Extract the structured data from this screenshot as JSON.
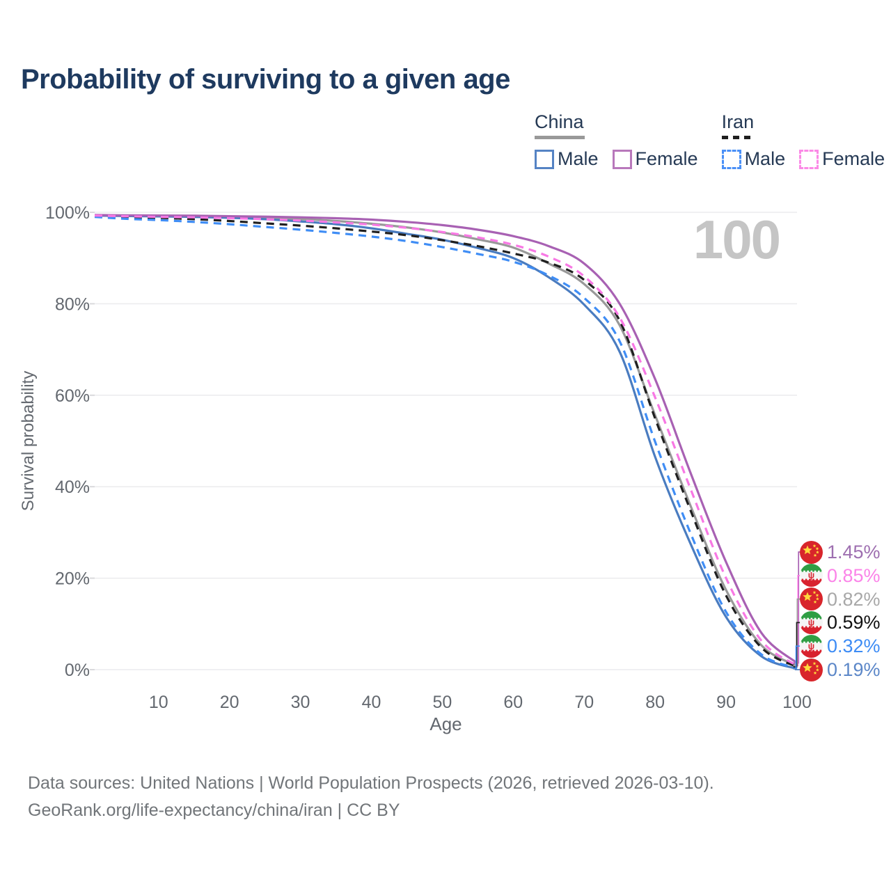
{
  "title": "Probability of surviving to a given age",
  "watermark": "100",
  "legend": {
    "china": {
      "label": "China",
      "male": "Male",
      "female": "Female"
    },
    "iran": {
      "label": "Iran",
      "male": "Male",
      "female": "Female"
    }
  },
  "footer": {
    "line1": "Data sources: United Nations | World Population Prospects (2026, retrieved 2026-03-10).",
    "line2": "GeoRank.org/life-expectancy/china/iran | CC BY"
  },
  "colors": {
    "title_text": "#1e3a5f",
    "legend_text": "#263a55",
    "axis_text": "#63686f",
    "grid_line": "#ebebed",
    "tick_stub": "#d9d9dc",
    "watermark": "#c5c5c5",
    "footer_text": "#717579",
    "china_flag_red": "#d8252b",
    "china_flag_yellow": "#ffd83d",
    "iran_flag_green": "#2f9e44",
    "iran_flag_white": "#f5f5f5",
    "iran_flag_red": "#d8222e"
  },
  "chart_data": {
    "type": "line",
    "title": "Probability of surviving to a given age",
    "xlabel": "Age",
    "ylabel": "Survival probability",
    "xlim": [
      1,
      100
    ],
    "ylim": [
      0,
      100
    ],
    "grid": "horizontal",
    "legend_position": "top-right",
    "xticks": [
      10,
      20,
      30,
      40,
      50,
      60,
      70,
      80,
      90,
      100
    ],
    "yticks": [
      {
        "value": 0,
        "label": "0%"
      },
      {
        "value": 20,
        "label": "20%"
      },
      {
        "value": 40,
        "label": "40%"
      },
      {
        "value": 60,
        "label": "60%"
      },
      {
        "value": 80,
        "label": "80%"
      },
      {
        "value": 100,
        "label": "100%"
      }
    ],
    "x": [
      1,
      5,
      10,
      15,
      20,
      25,
      30,
      35,
      40,
      45,
      50,
      55,
      60,
      65,
      70,
      75,
      80,
      85,
      90,
      95,
      100
    ],
    "series": [
      {
        "name": "China (both sexes)",
        "country": "China",
        "sex": "both",
        "flag": "china",
        "color": "#999999",
        "dashed": false,
        "end_label": "0.82%",
        "end_label_color": "#a8a8a8",
        "values": [
          99.3,
          99.25,
          99.2,
          99.1,
          98.95,
          98.75,
          98.5,
          98.1,
          97.5,
          96.7,
          95.6,
          94.1,
          92.3,
          88.8,
          84.3,
          75.3,
          55.6,
          35.8,
          17.4,
          5.3,
          0.82
        ]
      },
      {
        "name": "China Male",
        "country": "China",
        "sex": "male",
        "flag": "china",
        "color": "#4a7cc0",
        "dashed": false,
        "end_label": "0.19%",
        "end_label_color": "#5c87c8",
        "values": [
          99.3,
          99.2,
          99.1,
          99.0,
          98.8,
          98.5,
          98.0,
          97.4,
          96.5,
          95.3,
          94.0,
          92.2,
          90.0,
          85.8,
          79.8,
          69.5,
          46.5,
          27.5,
          11.5,
          2.9,
          0.19
        ]
      },
      {
        "name": "China Female",
        "country": "China",
        "sex": "female",
        "flag": "china",
        "color": "#a861b3",
        "dashed": false,
        "end_label": "1.45%",
        "end_label_color": "#9e6fb0",
        "values": [
          99.4,
          99.35,
          99.3,
          99.25,
          99.15,
          99.05,
          98.9,
          98.7,
          98.4,
          97.9,
          97.2,
          96.2,
          94.8,
          92.6,
          88.8,
          80.0,
          63.5,
          43.0,
          23.5,
          8.0,
          1.45
        ]
      },
      {
        "name": "Iran (both sexes)",
        "country": "Iran",
        "sex": "both",
        "flag": "iran",
        "color": "#1f1f1f",
        "dashed": true,
        "end_label": "0.59%",
        "end_label_color": "#111111",
        "values": [
          99.2,
          99.0,
          98.8,
          98.5,
          98.1,
          97.6,
          97.1,
          96.5,
          95.8,
          95.0,
          93.9,
          92.6,
          91.0,
          89.0,
          85.2,
          76.3,
          54.9,
          34.8,
          16.2,
          4.8,
          0.59
        ]
      },
      {
        "name": "Iran Male",
        "country": "Iran",
        "sex": "male",
        "flag": "iran",
        "color": "#3f8df5",
        "dashed": true,
        "end_label": "0.32%",
        "end_label_color": "#3d8cf5",
        "values": [
          99.0,
          98.6,
          98.3,
          97.9,
          97.4,
          96.8,
          96.2,
          95.5,
          94.7,
          93.7,
          92.4,
          90.9,
          89.2,
          86.2,
          81.3,
          71.8,
          49.8,
          29.8,
          12.6,
          3.3,
          0.32
        ]
      },
      {
        "name": "Iran Female",
        "country": "Iran",
        "sex": "female",
        "flag": "iran",
        "color": "#f878e4",
        "dashed": true,
        "end_label": "0.85%",
        "end_label_color": "#fb84e8",
        "values": [
          99.3,
          99.15,
          99.0,
          98.9,
          98.7,
          98.5,
          98.2,
          97.8,
          97.3,
          96.6,
          95.7,
          94.5,
          92.9,
          90.3,
          86.0,
          77.0,
          59.5,
          39.5,
          20.0,
          6.3,
          0.85
        ]
      }
    ]
  }
}
